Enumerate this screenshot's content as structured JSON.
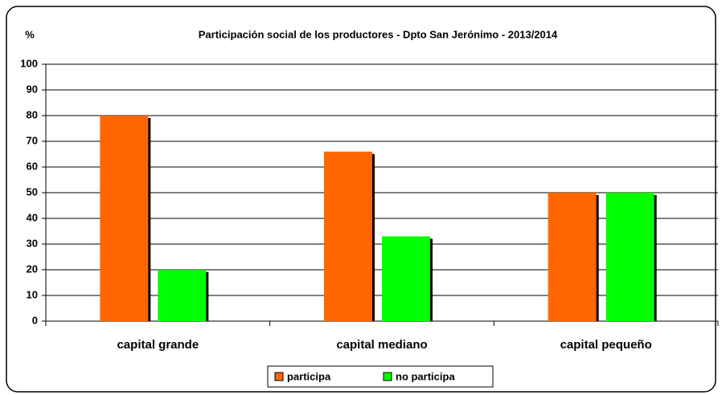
{
  "chart_data": {
    "type": "bar",
    "title": "Participación social de los productores - Dpto San Jerónimo - 2013/2014",
    "y_label": "%",
    "categories": [
      "capital grande",
      "capital mediano",
      "capital pequeño"
    ],
    "series": [
      {
        "name": "participa",
        "color": "#ff6600",
        "values": [
          80,
          66,
          50
        ]
      },
      {
        "name": "no participa",
        "color": "#00ff00",
        "values": [
          20,
          33,
          50
        ]
      }
    ],
    "ylim": [
      0,
      100
    ],
    "yticks": [
      0,
      10,
      20,
      30,
      40,
      50,
      60,
      70,
      80,
      90,
      100
    ],
    "grid": true,
    "legend": "bottom"
  }
}
